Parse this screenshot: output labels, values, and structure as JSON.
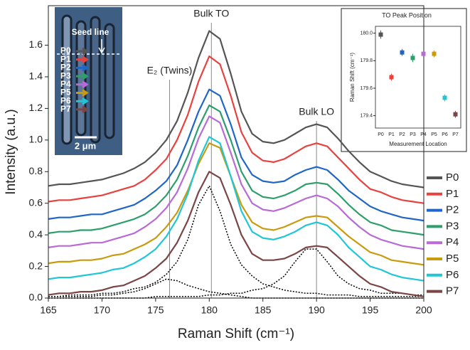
{
  "chart_data": [
    {
      "type": "line",
      "x_label": "Raman Shift (cm⁻¹)",
      "y_label": "Intensity (a.u.)",
      "x": [
        165,
        166,
        167,
        168,
        169,
        170,
        171,
        172,
        173,
        174,
        175,
        176,
        177,
        178,
        179,
        180,
        181,
        182,
        183,
        184,
        185,
        186,
        187,
        188,
        189,
        190,
        191,
        192,
        193,
        194,
        195,
        196,
        197,
        198,
        199,
        200
      ],
      "xlim": [
        165,
        200
      ],
      "xticks": [
        165,
        170,
        175,
        180,
        185,
        190,
        195,
        200
      ],
      "ylim": [
        0,
        1.85
      ],
      "yticks": [
        {
          "value": 0,
          "label": "0.0"
        },
        {
          "value": 0.2,
          "label": "0.2"
        },
        {
          "value": 0.4,
          "label": "0.4"
        },
        {
          "value": 0.6,
          "label": "0.6"
        },
        {
          "value": 0.8,
          "label": "0.8"
        },
        {
          "value": 1,
          "label": "1.0"
        },
        {
          "value": 1.2,
          "label": "1.2"
        },
        {
          "value": 1.4,
          "label": "1.4"
        },
        {
          "value": 1.6,
          "label": "1.6"
        }
      ],
      "legend_position": "right",
      "series": [
        {
          "name": "P0",
          "color": "#555555",
          "values": [
            0.71,
            0.72,
            0.72,
            0.73,
            0.74,
            0.75,
            0.77,
            0.79,
            0.82,
            0.86,
            0.92,
            1.0,
            1.12,
            1.3,
            1.52,
            1.69,
            1.64,
            1.42,
            1.18,
            1.04,
            0.99,
            0.98,
            1.0,
            1.04,
            1.08,
            1.1,
            1.08,
            1.01,
            0.93,
            0.86,
            0.8,
            0.77,
            0.74,
            0.72,
            0.71,
            0.7
          ]
        },
        {
          "name": "P1",
          "color": "#e8423f",
          "values": [
            0.61,
            0.62,
            0.62,
            0.63,
            0.64,
            0.65,
            0.67,
            0.69,
            0.71,
            0.75,
            0.81,
            0.88,
            1.0,
            1.16,
            1.37,
            1.53,
            1.48,
            1.28,
            1.05,
            0.92,
            0.87,
            0.86,
            0.88,
            0.92,
            0.96,
            0.98,
            0.96,
            0.89,
            0.82,
            0.75,
            0.69,
            0.67,
            0.64,
            0.62,
            0.61,
            0.6
          ]
        },
        {
          "name": "P2",
          "color": "#1f66c6",
          "values": [
            0.5,
            0.51,
            0.51,
            0.52,
            0.53,
            0.53,
            0.55,
            0.57,
            0.59,
            0.63,
            0.68,
            0.74,
            0.84,
            1.0,
            1.18,
            1.32,
            1.28,
            1.1,
            0.89,
            0.78,
            0.74,
            0.73,
            0.74,
            0.78,
            0.81,
            0.83,
            0.81,
            0.75,
            0.68,
            0.63,
            0.58,
            0.55,
            0.53,
            0.51,
            0.5,
            0.49
          ]
        },
        {
          "name": "P3",
          "color": "#2e9e6b",
          "values": [
            0.41,
            0.42,
            0.42,
            0.43,
            0.43,
            0.44,
            0.46,
            0.48,
            0.5,
            0.53,
            0.58,
            0.65,
            0.75,
            0.9,
            1.08,
            1.22,
            1.18,
            1.0,
            0.8,
            0.68,
            0.64,
            0.63,
            0.65,
            0.68,
            0.72,
            0.73,
            0.72,
            0.66,
            0.59,
            0.53,
            0.48,
            0.46,
            0.43,
            0.42,
            0.41,
            0.4
          ]
        },
        {
          "name": "P4",
          "color": "#b86ad6",
          "values": [
            0.32,
            0.33,
            0.33,
            0.34,
            0.35,
            0.35,
            0.37,
            0.39,
            0.41,
            0.45,
            0.5,
            0.57,
            0.67,
            0.82,
            1.01,
            1.15,
            1.11,
            0.92,
            0.72,
            0.6,
            0.56,
            0.55,
            0.57,
            0.6,
            0.63,
            0.65,
            0.63,
            0.58,
            0.51,
            0.45,
            0.4,
            0.37,
            0.35,
            0.33,
            0.32,
            0.31
          ]
        },
        {
          "name": "P5",
          "color": "#c99a0c",
          "values": [
            0.22,
            0.23,
            0.23,
            0.24,
            0.24,
            0.25,
            0.27,
            0.28,
            0.31,
            0.34,
            0.38,
            0.45,
            0.54,
            0.68,
            0.85,
            0.98,
            0.95,
            0.77,
            0.59,
            0.48,
            0.44,
            0.43,
            0.45,
            0.48,
            0.51,
            0.52,
            0.51,
            0.45,
            0.39,
            0.34,
            0.29,
            0.27,
            0.24,
            0.23,
            0.22,
            0.21
          ]
        },
        {
          "name": "P6",
          "color": "#1fc6d6",
          "values": [
            0.12,
            0.13,
            0.13,
            0.14,
            0.15,
            0.16,
            0.18,
            0.19,
            0.22,
            0.26,
            0.31,
            0.39,
            0.5,
            0.66,
            0.87,
            1.02,
            0.98,
            0.77,
            0.55,
            0.42,
            0.38,
            0.37,
            0.39,
            0.42,
            0.46,
            0.48,
            0.46,
            0.4,
            0.32,
            0.26,
            0.2,
            0.18,
            0.15,
            0.13,
            0.12,
            0.11
          ]
        },
        {
          "name": "P7",
          "color": "#7a4545",
          "values": [
            0.02,
            0.03,
            0.03,
            0.04,
            0.04,
            0.05,
            0.07,
            0.08,
            0.11,
            0.14,
            0.19,
            0.25,
            0.35,
            0.49,
            0.67,
            0.8,
            0.76,
            0.59,
            0.4,
            0.28,
            0.24,
            0.24,
            0.25,
            0.28,
            0.32,
            0.33,
            0.32,
            0.26,
            0.2,
            0.14,
            0.09,
            0.07,
            0.04,
            0.03,
            0.02,
            0.01
          ]
        }
      ],
      "fit_curves": [
        {
          "color": "#000000",
          "values": [
            0.01,
            0.01,
            0.01,
            0.01,
            0.01,
            0.02,
            0.02,
            0.03,
            0.04,
            0.06,
            0.09,
            0.12,
            0.11,
            0.08,
            0.06,
            0.04,
            0.03,
            0.02,
            0.01,
            0,
            0,
            0,
            0,
            0,
            0,
            0,
            0,
            0,
            0,
            0,
            0,
            0,
            0,
            0,
            0,
            0
          ]
        },
        {
          "color": "#000000",
          "values": [
            0.01,
            0.01,
            0.02,
            0.02,
            0.02,
            0.03,
            0.03,
            0.04,
            0.06,
            0.07,
            0.1,
            0.15,
            0.23,
            0.37,
            0.59,
            0.71,
            0.55,
            0.34,
            0.21,
            0.14,
            0.09,
            0.07,
            0.05,
            0.04,
            0.03,
            0.03,
            0.02,
            0.02,
            0.02,
            0.01,
            0.01,
            0.01,
            0.01,
            0.01,
            0.01,
            0.01
          ]
        },
        {
          "color": "#000000",
          "values": [
            0,
            0,
            0,
            0,
            0,
            0,
            0,
            0,
            0,
            0,
            0.01,
            0.01,
            0.01,
            0.01,
            0.01,
            0.02,
            0.02,
            0.03,
            0.03,
            0.05,
            0.06,
            0.09,
            0.14,
            0.23,
            0.31,
            0.31,
            0.23,
            0.14,
            0.09,
            0.06,
            0.05,
            0.03,
            0.03,
            0.03,
            0.02,
            0.02
          ]
        }
      ],
      "annotations": [
        {
          "x": 176.3,
          "text": "E₂ (Twins)"
        },
        {
          "x": 180.2,
          "text": "Bulk TO"
        },
        {
          "x": 190.0,
          "text": "Bulk LO"
        }
      ],
      "image_labels": {
        "seed_line": "Seed line",
        "positions": [
          "P0",
          "P1",
          "P2",
          "P3",
          "P4",
          "P5",
          "P6",
          "P7"
        ],
        "scale_bar": "2 μm"
      }
    },
    {
      "type": "scatter",
      "title": "TO Peak Position",
      "x_label": "Measurement Location",
      "y_label": "Raman Shift (cm⁻¹)",
      "categories": [
        "P0",
        "P1",
        "P2",
        "P3",
        "P4",
        "P5",
        "P6",
        "P7"
      ],
      "ylim": [
        179.31,
        180.05
      ],
      "yticks": [
        {
          "value": 179.4,
          "label": "179.4"
        },
        {
          "value": 179.6,
          "label": "179.6"
        },
        {
          "value": 179.8,
          "label": "179.8"
        },
        {
          "value": 180,
          "label": "180.0"
        }
      ],
      "colors": [
        "#555555",
        "#e8423f",
        "#1f66c6",
        "#2e9e6b",
        "#b86ad6",
        "#c99a0c",
        "#1fc6d6",
        "#7a4545"
      ],
      "values": [
        179.99,
        179.68,
        179.86,
        179.82,
        179.85,
        179.85,
        179.53,
        179.41
      ],
      "errors": [
        0.03,
        0.025,
        0.025,
        0.03,
        0.03,
        0.025,
        0.025,
        0.025
      ]
    }
  ]
}
